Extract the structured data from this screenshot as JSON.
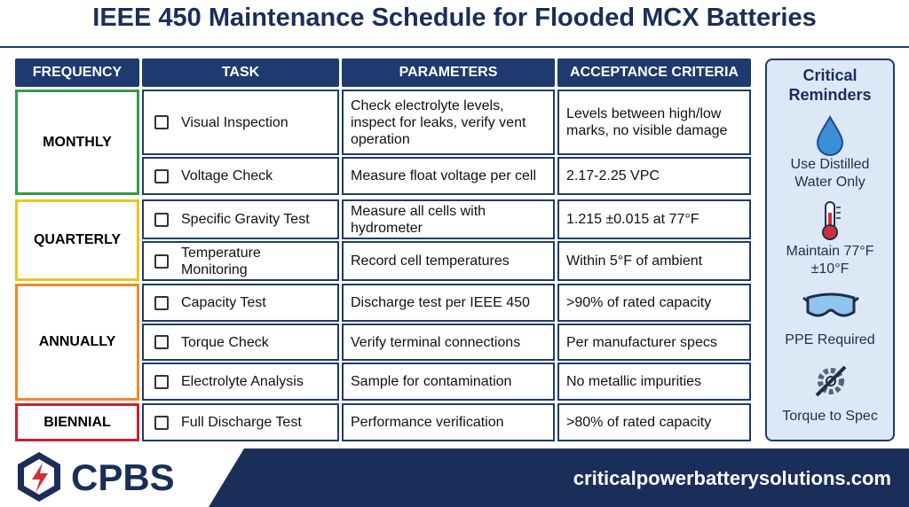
{
  "header": {
    "title": "IEEE 450 Maintenance Schedule for Flooded MCX Batteries"
  },
  "table": {
    "columns": [
      "FREQUENCY",
      "TASK",
      "PARAMETERS",
      "ACCEPTANCE CRITERIA"
    ],
    "groups": [
      {
        "frequency": "MONTHLY",
        "rows": [
          [
            "Visual Inspection",
            "Check electrolyte levels, inspect for leaks, verify vent operation",
            "Levels between high/low marks, no visible damage"
          ],
          [
            "Voltage Check",
            "Measure float voltage per cell",
            "2.17-2.25 VPC"
          ]
        ]
      },
      {
        "frequency": "QUARTERLY",
        "rows": [
          [
            "Specific Gravity Test",
            "Measure all cells with hydrometer",
            "1.215 ±0.015 at 77°F"
          ],
          [
            "Temperature Monitoring",
            "Record cell temperatures",
            "Within 5°F of ambient"
          ]
        ]
      },
      {
        "frequency": "ANNUALLY",
        "rows": [
          [
            "Capacity Test",
            "Discharge test per IEEE 450",
            ">90% of rated capacity"
          ],
          [
            "Torque Check",
            "Verify terminal connections",
            "Per manufacturer specs"
          ],
          [
            "Electrolyte Analysis",
            "Sample for contamination",
            "No metallic impurities"
          ]
        ]
      },
      {
        "frequency": "BIENNIAL",
        "rows": [
          [
            "Full Discharge Test",
            "Performance verification",
            ">80% of rated capacity"
          ]
        ]
      }
    ]
  },
  "sidebar": {
    "title": "Critical Reminders",
    "items": [
      "Use Distilled Water Only",
      "Maintain 77°F ±10°F",
      "PPE Required",
      "Torque to Spec"
    ]
  },
  "footer": {
    "logo": "CPBS",
    "url": "criticalpowerbatterysolutions.com"
  }
}
